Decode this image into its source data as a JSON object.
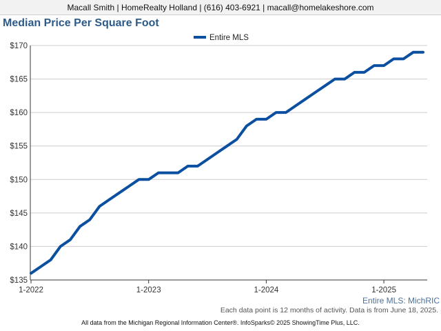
{
  "header": {
    "contact": "Macall Smith | HomeRealty Holland | (616) 403-6921 | macall@homelakeshore.com"
  },
  "chart_data": {
    "type": "line",
    "title": "Median Price Per Square Foot",
    "xlabel": "",
    "ylabel": "",
    "ylim": [
      135,
      170
    ],
    "y_ticks": [
      135,
      140,
      145,
      150,
      155,
      160,
      165,
      170
    ],
    "y_tick_labels": [
      "$135",
      "$140",
      "$145",
      "$150",
      "$155",
      "$160",
      "$165",
      "$170"
    ],
    "x_ticks": [
      {
        "label": "1-2022",
        "month": "2022-01"
      },
      {
        "label": "1-2023",
        "month": "2023-01"
      },
      {
        "label": "1-2024",
        "month": "2024-01"
      },
      {
        "label": "1-2025",
        "month": "2025-01"
      }
    ],
    "legend": {
      "position": "top-center"
    },
    "grid": true,
    "colors": {
      "series": "#0b4fa0",
      "grid": "#cccccc",
      "axis": "#333333"
    },
    "corner_label": "Entire MLS: MichRIC",
    "series": [
      {
        "name": "Entire MLS",
        "x": [
          "2022-01",
          "2022-02",
          "2022-03",
          "2022-04",
          "2022-05",
          "2022-06",
          "2022-07",
          "2022-08",
          "2022-09",
          "2022-10",
          "2022-11",
          "2022-12",
          "2023-01",
          "2023-02",
          "2023-03",
          "2023-04",
          "2023-05",
          "2023-06",
          "2023-07",
          "2023-08",
          "2023-09",
          "2023-10",
          "2023-11",
          "2023-12",
          "2024-01",
          "2024-02",
          "2024-03",
          "2024-04",
          "2024-05",
          "2024-06",
          "2024-07",
          "2024-08",
          "2024-09",
          "2024-10",
          "2024-11",
          "2024-12",
          "2025-01",
          "2025-02",
          "2025-03",
          "2025-04",
          "2025-05"
        ],
        "values": [
          136,
          137,
          138,
          140,
          141,
          143,
          144,
          146,
          147,
          148,
          149,
          150,
          150,
          151,
          151,
          151,
          152,
          152,
          153,
          154,
          155,
          156,
          158,
          159,
          159,
          160,
          160,
          161,
          162,
          163,
          164,
          165,
          165,
          166,
          166,
          167,
          167,
          168,
          168,
          169,
          169
        ]
      }
    ]
  },
  "footer": {
    "note": "Each data point is 12 months of activity. Data is from June 18, 2025.",
    "credits": "All data from the Michigan Regional Information Center®. InfoSparks© 2025 ShowingTime Plus, LLC."
  }
}
